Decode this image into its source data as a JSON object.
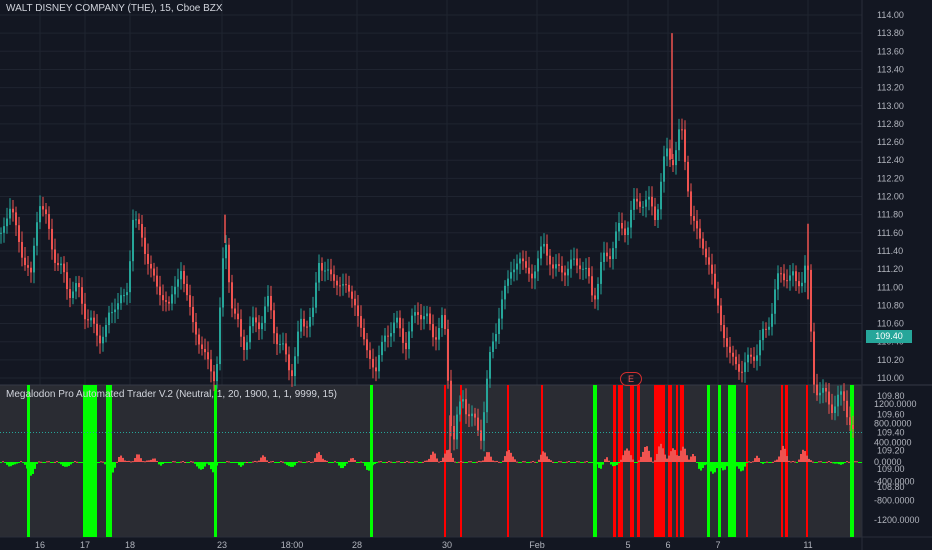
{
  "main_pane": {
    "title": "WALT DISNEY COMPANY (THE), 15, Cboe BZX",
    "last_price_label": "109.40"
  },
  "indicator_pane": {
    "title": "Megalodon Pro Automated Trader V.2 (Neutral, 1, 20, 1900, 1, 1, 9999, 15)"
  },
  "event_badge": "E",
  "colors": {
    "background": "#131722",
    "up": "#26a69a",
    "down": "#ef5350",
    "buy_signal": "#00ff00",
    "sell_signal": "#ff0000",
    "last_price_tag": "#26a69a"
  },
  "chart_data": [
    {
      "type": "candlestick",
      "y_ticks": [
        "114.00",
        "113.80",
        "113.60",
        "113.40",
        "113.20",
        "113.00",
        "112.80",
        "112.60",
        "112.40",
        "112.20",
        "112.00",
        "111.80",
        "111.60",
        "111.40",
        "111.20",
        "111.00",
        "110.80",
        "110.60",
        "110.40",
        "110.20",
        "110.00",
        "109.80",
        "109.60",
        "109.40",
        "109.20",
        "109.00",
        "108.80"
      ],
      "ylim": [
        108.8,
        114.1
      ],
      "x_ticks": [
        "16",
        "17",
        "18",
        "23",
        "18:00",
        "28",
        "30",
        "Feb",
        "5",
        "6",
        "7",
        "11"
      ],
      "anchors": [
        [
          0,
          111.6
        ],
        [
          10,
          111.9
        ],
        [
          20,
          111.4
        ],
        [
          30,
          111.1
        ],
        [
          38,
          112.0
        ],
        [
          48,
          111.6
        ],
        [
          58,
          111.2
        ],
        [
          68,
          111.0
        ],
        [
          80,
          110.9
        ],
        [
          92,
          110.5
        ],
        [
          105,
          110.5
        ],
        [
          115,
          110.9
        ],
        [
          125,
          110.8
        ],
        [
          132,
          111.8
        ],
        [
          142,
          111.5
        ],
        [
          155,
          111.0
        ],
        [
          168,
          110.8
        ],
        [
          180,
          111.2
        ],
        [
          192,
          110.6
        ],
        [
          205,
          110.2
        ],
        [
          215,
          110.0
        ],
        [
          224,
          111.6
        ],
        [
          232,
          110.7
        ],
        [
          242,
          110.4
        ],
        [
          255,
          110.6
        ],
        [
          268,
          110.8
        ],
        [
          280,
          110.3
        ],
        [
          292,
          110.1
        ],
        [
          300,
          110.6
        ],
        [
          312,
          110.7
        ],
        [
          318,
          111.3
        ],
        [
          330,
          111.1
        ],
        [
          345,
          111.0
        ],
        [
          355,
          110.8
        ],
        [
          365,
          110.3
        ],
        [
          375,
          110.1
        ],
        [
          385,
          110.5
        ],
        [
          395,
          110.6
        ],
        [
          405,
          110.4
        ],
        [
          418,
          110.8
        ],
        [
          430,
          110.5
        ],
        [
          443,
          110.6
        ],
        [
          452,
          109.3
        ],
        [
          462,
          109.8
        ],
        [
          472,
          109.5
        ],
        [
          480,
          109.4
        ],
        [
          490,
          110.3
        ],
        [
          500,
          110.8
        ],
        [
          510,
          111.2
        ],
        [
          520,
          111.3
        ],
        [
          532,
          111.1
        ],
        [
          542,
          111.5
        ],
        [
          552,
          111.2
        ],
        [
          565,
          111.2
        ],
        [
          580,
          111.3
        ],
        [
          592,
          110.9
        ],
        [
          600,
          111.2
        ],
        [
          612,
          111.5
        ],
        [
          625,
          111.7
        ],
        [
          640,
          112.0
        ],
        [
          655,
          111.8
        ],
        [
          665,
          112.5
        ],
        [
          673,
          112.4
        ],
        [
          680,
          112.8
        ],
        [
          690,
          111.8
        ],
        [
          700,
          111.5
        ],
        [
          710,
          111.2
        ],
        [
          720,
          110.6
        ],
        [
          730,
          110.2
        ],
        [
          742,
          110.1
        ],
        [
          755,
          110.3
        ],
        [
          765,
          110.5
        ],
        [
          775,
          111.0
        ],
        [
          785,
          111.2
        ],
        [
          795,
          111.0
        ],
        [
          806,
          111.3
        ],
        [
          812,
          110.0
        ],
        [
          822,
          109.8
        ],
        [
          832,
          109.7
        ],
        [
          842,
          109.8
        ],
        [
          852,
          109.4
        ]
      ],
      "spikes": [
        [
          672,
          113.8
        ],
        [
          225,
          111.8
        ],
        [
          450,
          109.1
        ],
        [
          808,
          111.7
        ]
      ]
    },
    {
      "type": "area",
      "y_ticks": [
        "1200.0000",
        "800.0000",
        "400.0000",
        "0.0000",
        "-400.0000",
        "-800.0000",
        "-1200.0000"
      ],
      "ylim": [
        -1300,
        1350
      ],
      "positive_peaks": [
        [
          120,
          120
        ],
        [
          137,
          150
        ],
        [
          152,
          80
        ],
        [
          262,
          120
        ],
        [
          318,
          200
        ],
        [
          350,
          80
        ],
        [
          432,
          200
        ],
        [
          447,
          280
        ],
        [
          487,
          200
        ],
        [
          508,
          260
        ],
        [
          543,
          220
        ],
        [
          606,
          120
        ],
        [
          626,
          300
        ],
        [
          645,
          350
        ],
        [
          660,
          380
        ],
        [
          672,
          300
        ],
        [
          682,
          320
        ],
        [
          692,
          160
        ],
        [
          757,
          150
        ],
        [
          782,
          320
        ],
        [
          803,
          250
        ]
      ],
      "negative_troughs": [
        [
          10,
          -100
        ],
        [
          30,
          -300
        ],
        [
          65,
          -120
        ],
        [
          88,
          -150
        ],
        [
          110,
          -280
        ],
        [
          160,
          -60
        ],
        [
          200,
          -180
        ],
        [
          212,
          -200
        ],
        [
          240,
          -80
        ],
        [
          290,
          -120
        ],
        [
          342,
          -140
        ],
        [
          368,
          -180
        ],
        [
          600,
          -140
        ],
        [
          612,
          -120
        ],
        [
          700,
          -180
        ],
        [
          712,
          -260
        ],
        [
          722,
          -180
        ],
        [
          732,
          -220
        ],
        [
          740,
          -200
        ],
        [
          760,
          -80
        ],
        [
          838,
          -60
        ]
      ],
      "buy_signal_bands": [
        [
          27,
          30
        ],
        [
          83,
          97
        ],
        [
          106,
          109
        ],
        [
          109,
          112
        ],
        [
          214,
          217
        ],
        [
          370,
          373
        ],
        [
          593,
          597
        ],
        [
          707,
          710
        ],
        [
          718,
          721
        ],
        [
          728,
          736
        ],
        [
          850,
          854
        ]
      ],
      "sell_signal_bands": [
        [
          444,
          446
        ],
        [
          460,
          462
        ],
        [
          507,
          509
        ],
        [
          541,
          543
        ],
        [
          613,
          616
        ],
        [
          618,
          623
        ],
        [
          630,
          634
        ],
        [
          637,
          640
        ],
        [
          654,
          665
        ],
        [
          668,
          672
        ],
        [
          676,
          678
        ],
        [
          680,
          684
        ],
        [
          746,
          748
        ],
        [
          781,
          783
        ],
        [
          785,
          788
        ],
        [
          806,
          808
        ]
      ]
    }
  ]
}
